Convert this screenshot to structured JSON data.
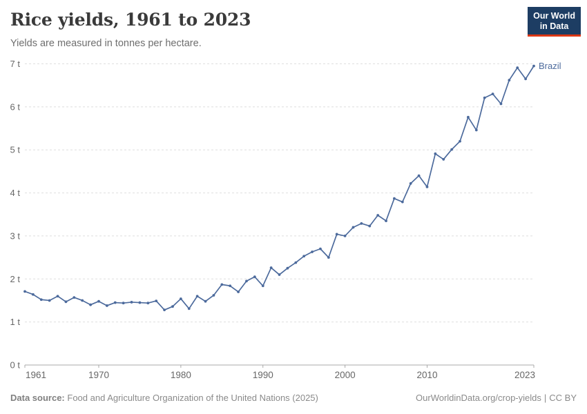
{
  "header": {
    "title": "Rice yields, 1961 to 2023",
    "subtitle": "Yields are measured in tonnes per hectare.",
    "logo": {
      "line1": "Our World",
      "line2": "in Data"
    }
  },
  "chart_data": {
    "type": "line",
    "title": "Rice yields, 1961 to 2023",
    "subtitle": "Yields are measured in tonnes per hectare.",
    "xlabel": "",
    "ylabel": "tonnes per hectare",
    "xlim": [
      1961,
      2023
    ],
    "ylim": [
      0,
      7
    ],
    "grid": "horizontal-dashed",
    "legend_position": "end-of-line-label",
    "xticks": [
      1961,
      1970,
      1980,
      1990,
      2000,
      2010,
      2023
    ],
    "yticks": [
      0,
      1,
      2,
      3,
      4,
      5,
      6,
      7
    ],
    "ytick_labels": [
      "0 t",
      "1 t",
      "2 t",
      "3 t",
      "4 t",
      "5 t",
      "6 t",
      "7 t"
    ],
    "series": [
      {
        "name": "Brazil",
        "color": "#4c6a9c",
        "x_start": 1961,
        "values": [
          1.71,
          1.64,
          1.52,
          1.5,
          1.6,
          1.47,
          1.57,
          1.5,
          1.4,
          1.48,
          1.38,
          1.45,
          1.44,
          1.46,
          1.45,
          1.44,
          1.49,
          1.28,
          1.36,
          1.54,
          1.31,
          1.6,
          1.48,
          1.62,
          1.87,
          1.84,
          1.7,
          1.95,
          2.05,
          1.84,
          2.26,
          2.1,
          2.25,
          2.38,
          2.53,
          2.63,
          2.7,
          2.5,
          3.04,
          3.0,
          3.2,
          3.29,
          3.23,
          3.48,
          3.35,
          3.87,
          3.79,
          4.22,
          4.4,
          4.14,
          4.91,
          4.78,
          5.01,
          5.2,
          5.76,
          5.46,
          6.21,
          6.3,
          6.07,
          6.62,
          6.91,
          6.65,
          6.95
        ]
      }
    ]
  },
  "footer": {
    "datasource_label": "Data source:",
    "datasource": "Food and Agriculture Organization of the United Nations (2025)",
    "url": "OurWorldinData.org/crop-yields",
    "separator": "|",
    "license": "CC BY"
  },
  "colors": {
    "line": "#4c6a9c",
    "entity_label": "#4c6a9c",
    "gridline": "#dedede",
    "axis": "#a8a8a8",
    "tick_label": "#666666",
    "logo_bg": "#1d3d63",
    "logo_red": "#dc3714"
  }
}
